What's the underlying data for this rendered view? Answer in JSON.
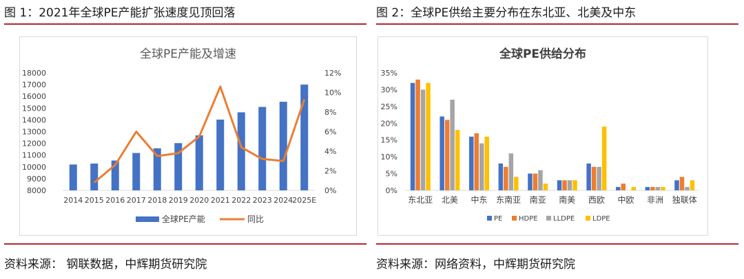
{
  "figures": [
    {
      "title": "图 1：2021年全球PE产能扩张速度见顶回落",
      "source": "资料来源：  钢联数据，中辉期货研究院"
    },
    {
      "title": "图 2：全球PE供给主要分布在东北亚、北美及中东",
      "source": "资料来源：网络资料，中辉期货研究院"
    }
  ],
  "colors": {
    "accent_red": "#b3262e",
    "bar_blue": "#4472c4",
    "line_orange": "#ed7d31",
    "gray": "#a5a5a5",
    "yellow": "#ffc000"
  },
  "chart_data": [
    {
      "type": "bar+line",
      "title": "全球PE产能及增速",
      "categories": [
        "2014",
        "2015",
        "2016",
        "2017",
        "2018",
        "2019",
        "2020",
        "2021",
        "2022",
        "2023",
        "2024",
        "2025E"
      ],
      "series": [
        {
          "name": "全球PE产能",
          "type": "bar",
          "axis": "left",
          "color": "#4472c4",
          "values": [
            10200,
            10280,
            10540,
            11180,
            11580,
            12020,
            12680,
            14020,
            14640,
            15100,
            15540,
            17000
          ]
        },
        {
          "name": "同比",
          "type": "line",
          "axis": "right",
          "color": "#ed7d31",
          "values": [
            null,
            0.8,
            2.6,
            6.0,
            3.5,
            3.8,
            5.5,
            10.6,
            4.4,
            3.2,
            3.0,
            9.3
          ]
        }
      ],
      "y_left": {
        "min": 8000,
        "max": 18000,
        "step": 1000,
        "ticks": [
          "8000",
          "9000",
          "10000",
          "11000",
          "12000",
          "13000",
          "14000",
          "15000",
          "16000",
          "17000",
          "18000"
        ]
      },
      "y_right": {
        "min": 0,
        "max": 12,
        "step": 2,
        "ticks": [
          "0%",
          "2%",
          "4%",
          "6%",
          "8%",
          "10%",
          "12%"
        ]
      },
      "legend": "bottom",
      "grid": false
    },
    {
      "type": "bar",
      "title": "全球PE供给分布",
      "categories": [
        "东北亚",
        "北美",
        "中东",
        "东南亚",
        "南亚",
        "南美",
        "西欧",
        "中欧",
        "非洲",
        "独联体"
      ],
      "series": [
        {
          "name": "PE",
          "color": "#4472c4",
          "values": [
            32,
            22,
            16,
            8,
            5,
            3,
            8,
            1,
            1,
            3
          ]
        },
        {
          "name": "HDPE",
          "color": "#ed7d31",
          "values": [
            33,
            21,
            17,
            7,
            5,
            3,
            7,
            2,
            1,
            4
          ]
        },
        {
          "name": "LLDPE",
          "color": "#a5a5a5",
          "values": [
            30,
            27,
            14,
            11,
            6,
            3,
            7,
            0,
            1,
            1
          ]
        },
        {
          "name": "LDPE",
          "color": "#ffc000",
          "values": [
            32,
            18,
            16,
            4,
            2,
            3,
            19,
            1,
            1,
            3
          ]
        }
      ],
      "y": {
        "min": 0,
        "max": 35,
        "step": 5,
        "ticks": [
          "0%",
          "5%",
          "10%",
          "15%",
          "20%",
          "25%",
          "30%",
          "35%"
        ]
      },
      "legend": "bottom",
      "grid": false
    }
  ]
}
